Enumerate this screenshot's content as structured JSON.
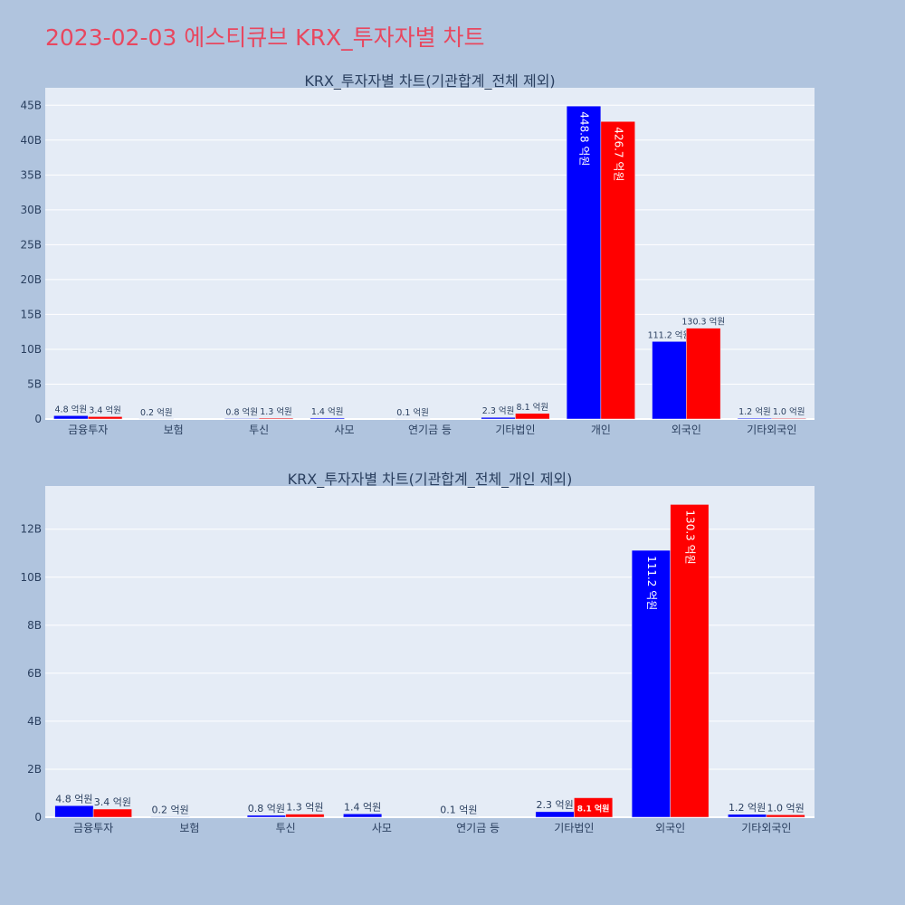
{
  "page": {
    "title": "2023-02-03 에스티큐브 KRX_투자자별 차트"
  },
  "colors": {
    "background": "#b0c4de",
    "plot_bg": "#e5ecf6",
    "title": "#e8475f",
    "series_a": "#0000ff",
    "series_b": "#ff0000",
    "text": "#2a3f5f"
  },
  "chart_data": [
    {
      "type": "bar",
      "title": "KRX_투자자별 차트(기관합계_전체 제외)",
      "categories": [
        "금융투자",
        "보험",
        "투신",
        "사모",
        "연기금 등",
        "기타법인",
        "개인",
        "외국인",
        "기타외국인"
      ],
      "series": [
        {
          "values": [
            480000000,
            20000000,
            80000000,
            140000000,
            10000000,
            230000000,
            44880000000,
            11120000000,
            120000000
          ],
          "labels": [
            "4.8 억원",
            "0.2 억원",
            "0.8 억원",
            "1.4 억원",
            "0.1 억원",
            "2.3 억원",
            "448.8 억원",
            "111.2 억원",
            "1.2 억원"
          ]
        },
        {
          "values": [
            340000000,
            0,
            130000000,
            0,
            0,
            810000000,
            42670000000,
            13030000000,
            100000000
          ],
          "labels": [
            "3.4 억원",
            "",
            "1.3 억원",
            "",
            "",
            "8.1 억원",
            "426.7 억원",
            "130.3 억원",
            "1.0 억원"
          ]
        }
      ],
      "ylim": [
        0,
        47500000000
      ],
      "yticks": [
        0,
        5000000000,
        10000000000,
        15000000000,
        20000000000,
        25000000000,
        30000000000,
        35000000000,
        40000000000,
        45000000000
      ],
      "ytick_labels": [
        "0",
        "5B",
        "10B",
        "15B",
        "20B",
        "25B",
        "30B",
        "35B",
        "40B",
        "45B"
      ],
      "grid": true
    },
    {
      "type": "bar",
      "title": "KRX_투자자별 차트(기관합계_전체_개인 제외)",
      "categories": [
        "금융투자",
        "보험",
        "투신",
        "사모",
        "연기금 등",
        "기타법인",
        "외국인",
        "기타외국인"
      ],
      "series": [
        {
          "values": [
            480000000,
            20000000,
            80000000,
            140000000,
            10000000,
            230000000,
            11120000000,
            120000000
          ],
          "labels": [
            "4.8 억원",
            "0.2 억원",
            "0.8 억원",
            "1.4 억원",
            "0.1 억원",
            "2.3 억원",
            "111.2 억원",
            "1.2 억원"
          ]
        },
        {
          "values": [
            340000000,
            0,
            130000000,
            0,
            0,
            810000000,
            13030000000,
            100000000
          ],
          "labels": [
            "3.4 억원",
            "",
            "1.3 억원",
            "",
            "",
            "8.1 억원",
            "130.3 억원",
            "1.0 억원"
          ]
        }
      ],
      "ylim": [
        0,
        13800000000
      ],
      "yticks": [
        0,
        2000000000,
        4000000000,
        6000000000,
        8000000000,
        10000000000,
        12000000000
      ],
      "ytick_labels": [
        "0",
        "2B",
        "4B",
        "6B",
        "8B",
        "10B",
        "12B"
      ],
      "grid": true
    }
  ]
}
